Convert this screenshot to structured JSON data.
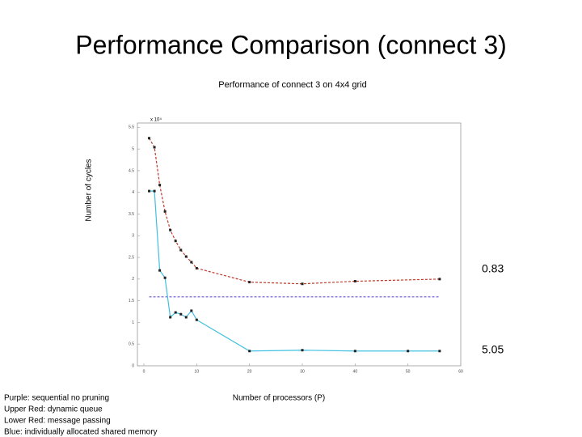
{
  "chart_data": {
    "type": "line",
    "title": "Performance Comparison (connect 3)",
    "subtitle": "Performance of connect 3 on 4x4 grid",
    "ylabel": "Number of cycles",
    "xlabel": "Number of processors (P)",
    "y_exponent": "x 10⁴",
    "xlim": [
      0,
      60
    ],
    "xticks": [
      0,
      10,
      20,
      30,
      40,
      50,
      60
    ],
    "ylim": [
      0,
      5.6
    ],
    "yticks": [
      0,
      0.5,
      1,
      1.5,
      2,
      2.5,
      3,
      3.5,
      4,
      4.5,
      5,
      5.5
    ],
    "annotations": [
      "0.83",
      "5.05"
    ],
    "legend_notes": [
      "Purple: sequential no pruning",
      "Upper Red: dynamic queue",
      "Lower Red: message passing",
      "Blue: individually allocated shared memory"
    ],
    "series": [
      {
        "color": "#c0392b",
        "dash": true,
        "x": [
          1,
          2,
          3,
          4,
          5,
          6,
          7,
          8,
          9,
          10,
          20,
          30,
          40,
          56
        ],
        "values": [
          5.25,
          5.04,
          4.17,
          3.56,
          3.13,
          2.88,
          2.67,
          2.52,
          2.39,
          2.25,
          1.93,
          1.89,
          1.95,
          2.0
        ]
      },
      {
        "color": "#6a5acd",
        "dash": true,
        "marker": false,
        "x": [
          1,
          56
        ],
        "values": [
          1.59,
          1.59
        ]
      },
      {
        "color": "#40c0e0",
        "dash": false,
        "x": [
          1,
          2,
          3,
          4,
          5,
          6,
          7,
          8,
          9,
          10,
          20,
          30,
          40,
          50,
          56
        ],
        "values": [
          4.03,
          4.03,
          2.2,
          2.03,
          1.12,
          1.23,
          1.19,
          1.12,
          1.27,
          1.06,
          0.34,
          0.36,
          0.34,
          0.34,
          0.34
        ]
      }
    ]
  }
}
